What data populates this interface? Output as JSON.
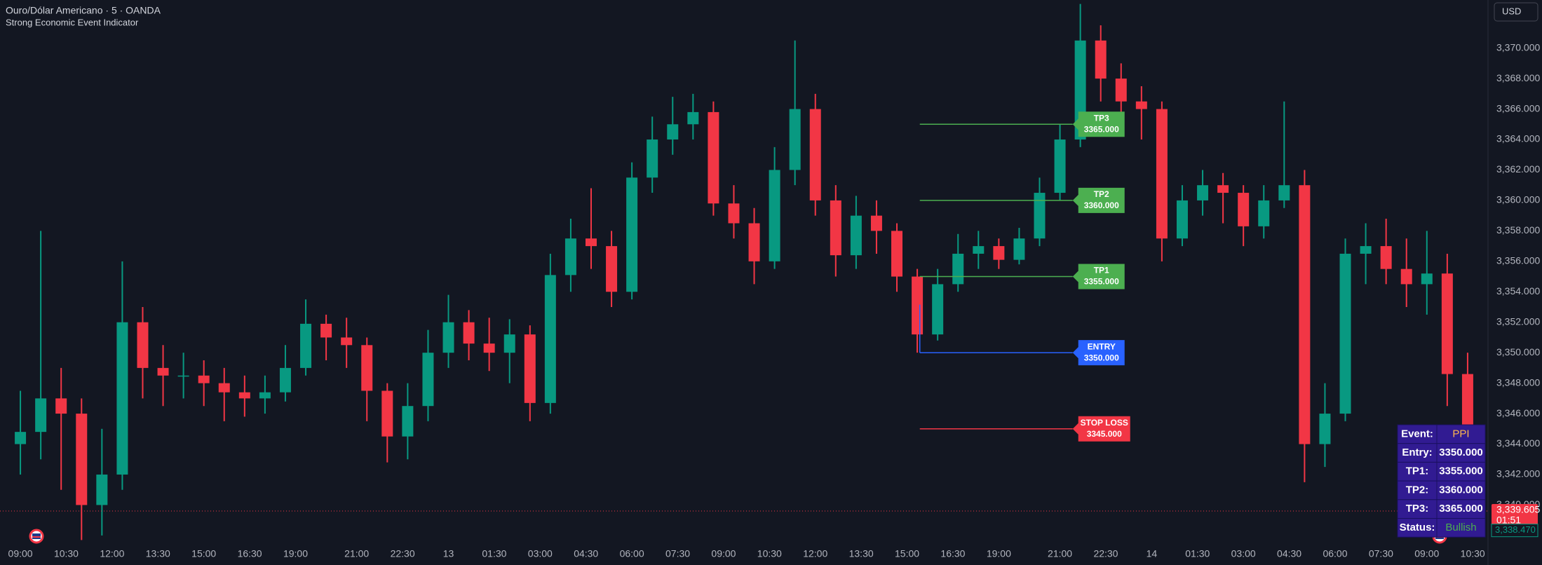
{
  "header": {
    "symbol": "Ouro/Dólar Americano · 5 · OANDA",
    "indicator": "Strong Economic Event Indicator",
    "currency": "USD"
  },
  "chart_data": {
    "type": "candlestick",
    "up_color": "#089981",
    "down_color": "#f23645",
    "grid": false,
    "xlim": [
      -8,
      576
    ],
    "ylim": [
      3337.35,
      3373.16
    ],
    "yticks": [
      {
        "value": 3340,
        "label": "3,340.000"
      },
      {
        "value": 3342,
        "label": "3,342.000"
      },
      {
        "value": 3344,
        "label": "3,344.000"
      },
      {
        "value": 3346,
        "label": "3,346.000"
      },
      {
        "value": 3348,
        "label": "3,348.000"
      },
      {
        "value": 3350,
        "label": "3,350.000"
      },
      {
        "value": 3352,
        "label": "3,352.000"
      },
      {
        "value": 3354,
        "label": "3,354.000"
      },
      {
        "value": 3356,
        "label": "3,356.000"
      },
      {
        "value": 3358,
        "label": "3,358.000"
      },
      {
        "value": 3360,
        "label": "3,360.000"
      },
      {
        "value": 3362,
        "label": "3,362.000"
      },
      {
        "value": 3364,
        "label": "3,364.000"
      },
      {
        "value": 3366,
        "label": "3,366.000"
      },
      {
        "value": 3368,
        "label": "3,368.000"
      },
      {
        "value": 3370,
        "label": "3,370.000"
      }
    ],
    "xticks": [
      {
        "value": 0,
        "label": "09:00"
      },
      {
        "value": 18,
        "label": "10:30"
      },
      {
        "value": 36,
        "label": "12:00"
      },
      {
        "value": 54,
        "label": "13:30"
      },
      {
        "value": 72,
        "label": "15:00"
      },
      {
        "value": 90,
        "label": "16:30"
      },
      {
        "value": 108,
        "label": "19:00"
      },
      {
        "value": 132,
        "label": "21:00"
      },
      {
        "value": 150,
        "label": "22:30"
      },
      {
        "value": 168,
        "label": "13"
      },
      {
        "value": 186,
        "label": "01:30"
      },
      {
        "value": 204,
        "label": "03:00"
      },
      {
        "value": 222,
        "label": "04:30"
      },
      {
        "value": 240,
        "label": "06:00"
      },
      {
        "value": 258,
        "label": "07:30"
      },
      {
        "value": 276,
        "label": "09:00"
      },
      {
        "value": 294,
        "label": "10:30"
      },
      {
        "value": 312,
        "label": "12:00"
      },
      {
        "value": 330,
        "label": "13:30"
      },
      {
        "value": 348,
        "label": "15:00"
      },
      {
        "value": 366,
        "label": "16:30"
      },
      {
        "value": 384,
        "label": "19:00"
      },
      {
        "value": 408,
        "label": "21:00"
      },
      {
        "value": 426,
        "label": "22:30"
      },
      {
        "value": 444,
        "label": "14"
      },
      {
        "value": 462,
        "label": "01:30"
      },
      {
        "value": 480,
        "label": "03:00"
      },
      {
        "value": 498,
        "label": "04:30"
      },
      {
        "value": 516,
        "label": "06:00"
      },
      {
        "value": 534,
        "label": "07:30"
      },
      {
        "value": 552,
        "label": "09:00"
      },
      {
        "value": 570,
        "label": "10:30"
      }
    ],
    "x": [
      0,
      8,
      16,
      24,
      32,
      40,
      48,
      56,
      64,
      72,
      80,
      88,
      96,
      104,
      112,
      120,
      128,
      136,
      144,
      152,
      160,
      168,
      176,
      184,
      192,
      200,
      208,
      216,
      224,
      232,
      240,
      248,
      256,
      264,
      272,
      280,
      288,
      296,
      304,
      312,
      320,
      328,
      336,
      344,
      352,
      360,
      368,
      376,
      384,
      392,
      400,
      408,
      416,
      424,
      432,
      440,
      448,
      456,
      464,
      472,
      480,
      488,
      496,
      504,
      512,
      520,
      528,
      536,
      544,
      552,
      560,
      568
    ],
    "open": [
      3344,
      3344.8,
      3347,
      3346,
      3340,
      3342,
      3352,
      3349,
      3348.5,
      3348.5,
      3348,
      3347.4,
      3347,
      3347.4,
      3349,
      3351.9,
      3351,
      3350.5,
      3347.5,
      3344.5,
      3346.5,
      3350,
      3352,
      3350.6,
      3350,
      3351.2,
      3346.7,
      3355.1,
      3357.5,
      3357,
      3354,
      3361.5,
      3364,
      3365,
      3365.8,
      3359.8,
      3358.5,
      3356,
      3362,
      3366,
      3360,
      3356.4,
      3359,
      3358,
      3355,
      3351.2,
      3354.5,
      3356.5,
      3357,
      3356.1,
      3357.5,
      3360.5,
      3364,
      3370.5,
      3368,
      3366.5,
      3366,
      3357.5,
      3360,
      3361,
      3360.5,
      3358.3,
      3360,
      3361,
      3344,
      3346,
      3356.5,
      3357,
      3355.5,
      3354.5,
      3355.2,
      3348.6
    ],
    "high": [
      3347.5,
      3358,
      3349,
      3347,
      3345,
      3356,
      3353,
      3350.5,
      3350,
      3349.5,
      3349,
      3348.5,
      3348.5,
      3350.5,
      3353.5,
      3352.5,
      3352.3,
      3351,
      3348,
      3348,
      3351.5,
      3353.8,
      3352.8,
      3352.3,
      3352.2,
      3351.8,
      3356.5,
      3358.8,
      3360.8,
      3358,
      3362.5,
      3365.5,
      3366.8,
      3367,
      3366.5,
      3361,
      3359.5,
      3363.5,
      3370.5,
      3367,
      3361,
      3360.3,
      3360,
      3358.5,
      3355.5,
      3355.5,
      3357.8,
      3358,
      3357.5,
      3358.2,
      3361.5,
      3365,
      3372.9,
      3371.5,
      3369,
      3367.5,
      3366.5,
      3361,
      3362,
      3361.8,
      3361,
      3361,
      3366.5,
      3362,
      3348,
      3357.5,
      3358.5,
      3358.8,
      3357.5,
      3358,
      3356.5,
      3350
    ],
    "low": [
      3342,
      3343,
      3341,
      3337.7,
      3338,
      3341,
      3347,
      3346.5,
      3347,
      3346.5,
      3345.5,
      3345.8,
      3346,
      3346.8,
      3348.5,
      3349.5,
      3349,
      3345.5,
      3342.8,
      3343,
      3345.5,
      3349,
      3349.5,
      3348.8,
      3348,
      3345.5,
      3346,
      3354,
      3355.5,
      3353,
      3353.5,
      3360.5,
      3363,
      3364,
      3359,
      3357.5,
      3354.5,
      3355.5,
      3361,
      3359,
      3355,
      3355.5,
      3356.5,
      3354,
      3350,
      3350.8,
      3354,
      3355.5,
      3355.5,
      3355.8,
      3357,
      3360,
      3363.5,
      3366.5,
      3365,
      3364,
      3356,
      3357,
      3359,
      3358.5,
      3357,
      3357.5,
      3359.5,
      3341.5,
      3342.5,
      3345.5,
      3354.5,
      3354.5,
      3353,
      3352.5,
      3346.5,
      3338
    ],
    "close": [
      3344.8,
      3347,
      3346,
      3340,
      3342,
      3352,
      3349,
      3348.5,
      3348.5,
      3348,
      3347.4,
      3347,
      3347.4,
      3349,
      3351.9,
      3351,
      3350.5,
      3347.5,
      3344.5,
      3346.5,
      3350,
      3352,
      3350.6,
      3350,
      3351.2,
      3346.7,
      3355.1,
      3357.5,
      3357,
      3354,
      3361.5,
      3364,
      3365,
      3365.8,
      3359.8,
      3358.5,
      3356,
      3362,
      3366,
      3360,
      3356.4,
      3359,
      3358,
      3355,
      3351.2,
      3354.5,
      3356.5,
      3357,
      3356.1,
      3357.5,
      3360.5,
      3364,
      3370.5,
      3368,
      3366.5,
      3366,
      3357.5,
      3360,
      3361,
      3360.5,
      3358.3,
      3360,
      3361,
      3344,
      3346,
      3356.5,
      3357,
      3355.5,
      3354.5,
      3355.2,
      3348.6,
      3339.6
    ],
    "levels_x": [
      353,
      413
    ],
    "levels": [
      {
        "label": "TP3",
        "value": 3365,
        "value_label": "3365.000",
        "color": "#4caf50"
      },
      {
        "label": "TP2",
        "value": 3360,
        "value_label": "3360.000",
        "color": "#4caf50"
      },
      {
        "label": "TP1",
        "value": 3355,
        "value_label": "3355.000",
        "color": "#4caf50"
      },
      {
        "label": "ENTRY",
        "value": 3350,
        "value_label": "3350.000",
        "color": "#2962ff"
      },
      {
        "label": "STOP LOSS",
        "value": 3345,
        "value_label": "3345.000",
        "color": "#f23645"
      }
    ],
    "last_price": {
      "value": 3339.605,
      "label": "3,339.605",
      "countdown": "01:51"
    },
    "secondary_price": {
      "value": 3338.47,
      "label": "3,338.470"
    }
  },
  "table": {
    "rows": [
      [
        "Event:",
        "PPI"
      ],
      [
        "Entry:",
        "3350.000"
      ],
      [
        "TP1:",
        "3355.000"
      ],
      [
        "TP2:",
        "3360.000"
      ],
      [
        "TP3:",
        "3365.000"
      ],
      [
        "Status:",
        "Bullish"
      ]
    ]
  }
}
